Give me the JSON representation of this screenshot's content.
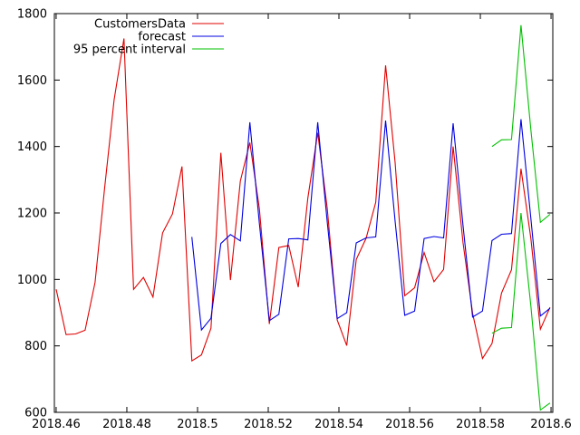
{
  "chart_data": {
    "type": "line",
    "title": "",
    "xlabel": "",
    "ylabel": "",
    "xlim": [
      2018.4595,
      2018.6005
    ],
    "ylim": [
      600,
      1800
    ],
    "xticks": [
      2018.46,
      2018.48,
      2018.5,
      2018.52,
      2018.54,
      2018.56,
      2018.58,
      2018.6
    ],
    "xtick_labels": [
      "2018.46",
      "2018.48",
      "2018.5",
      "2018.52",
      "2018.54",
      "2018.56",
      "2018.58",
      "2018.6"
    ],
    "yticks": [
      600,
      800,
      1000,
      1200,
      1400,
      1600,
      1800
    ],
    "ytick_labels": [
      "600",
      "800",
      "1000",
      "1200",
      "1400",
      "1600",
      "1800"
    ],
    "grid": false,
    "legend": "top-left",
    "series": [
      {
        "name": "CustomersData",
        "color": "#e00000",
        "points": [
          [
            2018.46,
            970
          ],
          [
            2018.4628,
            834
          ],
          [
            2018.4655,
            836
          ],
          [
            2018.4682,
            847
          ],
          [
            2018.471,
            991
          ],
          [
            2018.4737,
            1274
          ],
          [
            2018.4764,
            1540
          ],
          [
            2018.4792,
            1725
          ],
          [
            2018.4819,
            970
          ],
          [
            2018.4847,
            1006
          ],
          [
            2018.4874,
            947
          ],
          [
            2018.4901,
            1140
          ],
          [
            2018.4929,
            1197
          ],
          [
            2018.4956,
            1340
          ],
          [
            2018.4984,
            755
          ],
          [
            2018.5011,
            773
          ],
          [
            2018.5038,
            853
          ],
          [
            2018.5066,
            1381
          ],
          [
            2018.5093,
            998
          ],
          [
            2018.5121,
            1296
          ],
          [
            2018.5148,
            1412
          ],
          [
            2018.5175,
            1213
          ],
          [
            2018.5203,
            866
          ],
          [
            2018.523,
            1096
          ],
          [
            2018.5258,
            1102
          ],
          [
            2018.5285,
            977
          ],
          [
            2018.5312,
            1245
          ],
          [
            2018.534,
            1441
          ],
          [
            2018.5367,
            1214
          ],
          [
            2018.5395,
            878
          ],
          [
            2018.5422,
            801
          ],
          [
            2018.5449,
            1060
          ],
          [
            2018.5477,
            1124
          ],
          [
            2018.5504,
            1232
          ],
          [
            2018.5532,
            1644
          ],
          [
            2018.5559,
            1352
          ],
          [
            2018.5586,
            951
          ],
          [
            2018.5614,
            975
          ],
          [
            2018.5641,
            1081
          ],
          [
            2018.5669,
            993
          ],
          [
            2018.5696,
            1030
          ],
          [
            2018.5723,
            1400
          ],
          [
            2018.5751,
            1111
          ],
          [
            2018.5778,
            898
          ],
          [
            2018.5806,
            762
          ],
          [
            2018.5833,
            807
          ],
          [
            2018.586,
            959
          ],
          [
            2018.5888,
            1029
          ],
          [
            2018.5915,
            1333
          ],
          [
            2018.5943,
            1123
          ],
          [
            2018.597,
            850
          ],
          [
            2018.5997,
            916
          ]
        ]
      },
      {
        "name": "forecast",
        "color": "#0000e0",
        "points": [
          [
            2018.4984,
            1128
          ],
          [
            2018.5011,
            848
          ],
          [
            2018.5038,
            883
          ],
          [
            2018.5066,
            1108
          ],
          [
            2018.5093,
            1135
          ],
          [
            2018.5121,
            1116
          ],
          [
            2018.5148,
            1473
          ],
          [
            2018.5175,
            1169
          ],
          [
            2018.5203,
            876
          ],
          [
            2018.523,
            895
          ],
          [
            2018.5258,
            1122
          ],
          [
            2018.5285,
            1123
          ],
          [
            2018.5312,
            1119
          ],
          [
            2018.534,
            1473
          ],
          [
            2018.5367,
            1173
          ],
          [
            2018.5395,
            882
          ],
          [
            2018.5422,
            900
          ],
          [
            2018.5449,
            1110
          ],
          [
            2018.5477,
            1125
          ],
          [
            2018.5504,
            1128
          ],
          [
            2018.5532,
            1478
          ],
          [
            2018.5559,
            1175
          ],
          [
            2018.5586,
            892
          ],
          [
            2018.5614,
            905
          ],
          [
            2018.5641,
            1123
          ],
          [
            2018.5669,
            1129
          ],
          [
            2018.5696,
            1125
          ],
          [
            2018.5723,
            1470
          ],
          [
            2018.5751,
            1163
          ],
          [
            2018.5778,
            887
          ],
          [
            2018.5806,
            905
          ],
          [
            2018.5833,
            1117
          ],
          [
            2018.586,
            1136
          ],
          [
            2018.5888,
            1138
          ],
          [
            2018.5915,
            1482
          ],
          [
            2018.5943,
            1183
          ],
          [
            2018.597,
            890
          ],
          [
            2018.5997,
            913
          ]
        ]
      },
      {
        "name": "95 percent interval",
        "color": "#00c000",
        "segments": [
          [
            [
              2018.5833,
              1400
            ],
            [
              2018.586,
              1420
            ],
            [
              2018.5888,
              1421
            ],
            [
              2018.5915,
              1765
            ],
            [
              2018.5943,
              1450
            ],
            [
              2018.597,
              1172
            ],
            [
              2018.5997,
              1196
            ]
          ],
          [
            [
              2018.5833,
              838
            ],
            [
              2018.586,
              853
            ],
            [
              2018.5888,
              855
            ],
            [
              2018.5915,
              1200
            ],
            [
              2018.5943,
              920
            ],
            [
              2018.597,
              607
            ],
            [
              2018.5997,
              628
            ]
          ]
        ]
      }
    ]
  }
}
